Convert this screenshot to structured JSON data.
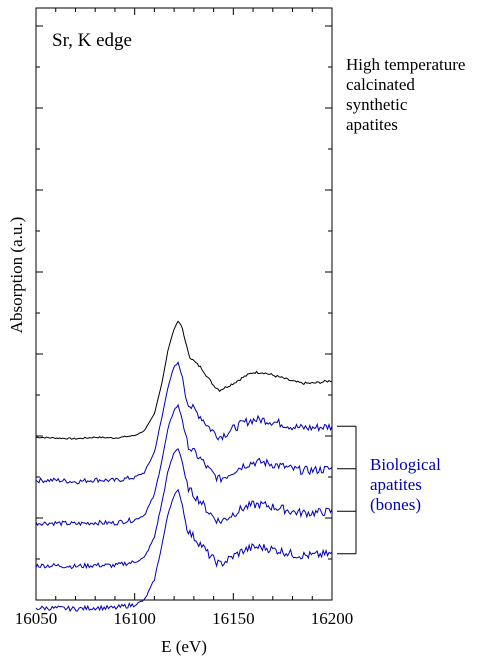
{
  "chart_data": {
    "type": "line",
    "title": "Sr, K edge",
    "xlabel": "E (eV)",
    "ylabel": "Absorption (a.u.)",
    "xlim": [
      16050,
      16200
    ],
    "x_ticks": [
      16050,
      16100,
      16150,
      16200
    ],
    "y_tick_labels": "none",
    "grid": false,
    "colors": {
      "axis": "#000000",
      "synthetic": "#000000",
      "biological": "#0000b4"
    },
    "annotations": [
      {
        "text_lines": [
          "High temperature",
          "calcinated",
          "synthetic",
          "apatites"
        ],
        "color": "#000000"
      },
      {
        "text_lines": [
          "Biological",
          "apatites",
          "(bones)"
        ],
        "color": "#0000b4",
        "bracket": "spans the four blue spectra"
      }
    ],
    "series": [
      {
        "color": "#000000",
        "offset": 4.0,
        "points": [
          [
            16050,
            0.02
          ],
          [
            16060,
            0.0
          ],
          [
            16070,
            -0.02
          ],
          [
            16080,
            0.02
          ],
          [
            16090,
            0.0
          ],
          [
            16100,
            0.06
          ],
          [
            16105,
            0.18
          ],
          [
            16110,
            0.6
          ],
          [
            16114,
            1.4
          ],
          [
            16117,
            2.2
          ],
          [
            16120,
            2.7
          ],
          [
            16122,
            2.88
          ],
          [
            16124,
            2.75
          ],
          [
            16126,
            2.3
          ],
          [
            16128,
            2.0
          ],
          [
            16131,
            1.85
          ],
          [
            16134,
            1.72
          ],
          [
            16137,
            1.5
          ],
          [
            16140,
            1.3
          ],
          [
            16143,
            1.18
          ],
          [
            16146,
            1.25
          ],
          [
            16150,
            1.35
          ],
          [
            16155,
            1.5
          ],
          [
            16160,
            1.62
          ],
          [
            16165,
            1.62
          ],
          [
            16170,
            1.55
          ],
          [
            16175,
            1.48
          ],
          [
            16180,
            1.4
          ],
          [
            16185,
            1.35
          ],
          [
            16190,
            1.35
          ],
          [
            16195,
            1.38
          ],
          [
            16200,
            1.42
          ]
        ]
      },
      {
        "color": "#0000b4",
        "offset": 2.95,
        "points": [
          [
            16050,
            0.0
          ],
          [
            16060,
            0.01
          ],
          [
            16070,
            -0.03
          ],
          [
            16080,
            0.02
          ],
          [
            16090,
            0.0
          ],
          [
            16095,
            0.04
          ],
          [
            16100,
            0.08
          ],
          [
            16105,
            0.2
          ],
          [
            16110,
            0.7
          ],
          [
            16114,
            1.6
          ],
          [
            16117,
            2.35
          ],
          [
            16120,
            2.8
          ],
          [
            16122,
            2.9
          ],
          [
            16124,
            2.6
          ],
          [
            16126,
            2.05
          ],
          [
            16128,
            1.85
          ],
          [
            16131,
            1.7
          ],
          [
            16134,
            1.55
          ],
          [
            16137,
            1.35
          ],
          [
            16140,
            1.2
          ],
          [
            16143,
            1.08
          ],
          [
            16146,
            1.15
          ],
          [
            16150,
            1.28
          ],
          [
            16155,
            1.42
          ],
          [
            16160,
            1.5
          ],
          [
            16165,
            1.5
          ],
          [
            16170,
            1.45
          ],
          [
            16175,
            1.4
          ],
          [
            16180,
            1.33
          ],
          [
            16185,
            1.3
          ],
          [
            16190,
            1.3
          ],
          [
            16195,
            1.32
          ],
          [
            16200,
            1.34
          ]
        ]
      },
      {
        "color": "#0000b4",
        "offset": 1.9,
        "points": [
          [
            16050,
            0.0
          ],
          [
            16060,
            0.0
          ],
          [
            16070,
            -0.02
          ],
          [
            16080,
            0.01
          ],
          [
            16090,
            0.0
          ],
          [
            16095,
            0.05
          ],
          [
            16100,
            0.08
          ],
          [
            16105,
            0.2
          ],
          [
            16110,
            0.7
          ],
          [
            16114,
            1.6
          ],
          [
            16117,
            2.35
          ],
          [
            16120,
            2.8
          ],
          [
            16122,
            2.9
          ],
          [
            16124,
            2.6
          ],
          [
            16126,
            2.05
          ],
          [
            16128,
            1.85
          ],
          [
            16131,
            1.7
          ],
          [
            16134,
            1.55
          ],
          [
            16137,
            1.35
          ],
          [
            16140,
            1.2
          ],
          [
            16143,
            1.08
          ],
          [
            16146,
            1.15
          ],
          [
            16150,
            1.28
          ],
          [
            16155,
            1.42
          ],
          [
            16160,
            1.5
          ],
          [
            16165,
            1.5
          ],
          [
            16170,
            1.45
          ],
          [
            16175,
            1.4
          ],
          [
            16180,
            1.33
          ],
          [
            16185,
            1.3
          ],
          [
            16190,
            1.3
          ],
          [
            16195,
            1.32
          ],
          [
            16200,
            1.34
          ]
        ]
      },
      {
        "color": "#0000b4",
        "offset": 0.85,
        "points": [
          [
            16050,
            0.0
          ],
          [
            16060,
            0.0
          ],
          [
            16070,
            -0.02
          ],
          [
            16080,
            0.01
          ],
          [
            16090,
            0.0
          ],
          [
            16095,
            0.05
          ],
          [
            16100,
            0.08
          ],
          [
            16105,
            0.2
          ],
          [
            16110,
            0.7
          ],
          [
            16114,
            1.6
          ],
          [
            16117,
            2.35
          ],
          [
            16120,
            2.8
          ],
          [
            16122,
            2.9
          ],
          [
            16124,
            2.6
          ],
          [
            16126,
            2.05
          ],
          [
            16128,
            1.85
          ],
          [
            16131,
            1.7
          ],
          [
            16134,
            1.55
          ],
          [
            16137,
            1.35
          ],
          [
            16140,
            1.2
          ],
          [
            16143,
            1.08
          ],
          [
            16146,
            1.15
          ],
          [
            16150,
            1.28
          ],
          [
            16155,
            1.42
          ],
          [
            16160,
            1.5
          ],
          [
            16165,
            1.5
          ],
          [
            16170,
            1.45
          ],
          [
            16175,
            1.4
          ],
          [
            16180,
            1.33
          ],
          [
            16185,
            1.3
          ],
          [
            16190,
            1.3
          ],
          [
            16195,
            1.32
          ],
          [
            16200,
            1.34
          ]
        ]
      },
      {
        "color": "#0000b4",
        "offset": -0.2,
        "points": [
          [
            16050,
            0.0
          ],
          [
            16060,
            0.0
          ],
          [
            16070,
            -0.02
          ],
          [
            16080,
            0.01
          ],
          [
            16090,
            0.0
          ],
          [
            16095,
            0.05
          ],
          [
            16100,
            0.08
          ],
          [
            16105,
            0.2
          ],
          [
            16110,
            0.7
          ],
          [
            16114,
            1.6
          ],
          [
            16117,
            2.35
          ],
          [
            16120,
            2.8
          ],
          [
            16122,
            2.9
          ],
          [
            16124,
            2.6
          ],
          [
            16126,
            2.05
          ],
          [
            16128,
            1.85
          ],
          [
            16131,
            1.7
          ],
          [
            16134,
            1.55
          ],
          [
            16137,
            1.35
          ],
          [
            16140,
            1.2
          ],
          [
            16143,
            1.08
          ],
          [
            16146,
            1.15
          ],
          [
            16150,
            1.28
          ],
          [
            16155,
            1.42
          ],
          [
            16160,
            1.5
          ],
          [
            16165,
            1.5
          ],
          [
            16170,
            1.45
          ],
          [
            16175,
            1.4
          ],
          [
            16180,
            1.33
          ],
          [
            16185,
            1.3
          ],
          [
            16190,
            1.3
          ],
          [
            16195,
            1.32
          ],
          [
            16200,
            1.34
          ]
        ]
      }
    ]
  }
}
